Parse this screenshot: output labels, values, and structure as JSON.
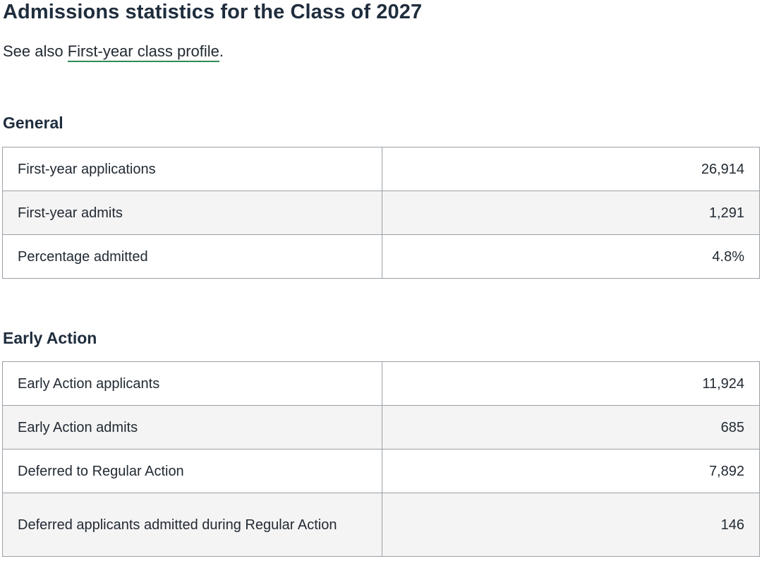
{
  "page": {
    "title": "Admissions statistics for the Class of 2027",
    "see_also_prefix": "See also ",
    "see_also_link": "First-year class profile",
    "see_also_suffix": "."
  },
  "general": {
    "heading": "General",
    "rows": [
      {
        "label": "First-year applications",
        "value": "26,914"
      },
      {
        "label": "First-year admits",
        "value": "1,291"
      },
      {
        "label": "Percentage admitted",
        "value": "4.8%"
      }
    ]
  },
  "early_action": {
    "heading": "Early Action",
    "rows": [
      {
        "label": "Early Action applicants",
        "value": "11,924"
      },
      {
        "label": "Early Action admits",
        "value": "685"
      },
      {
        "label": "Deferred to Regular Action",
        "value": "7,892"
      },
      {
        "label": "Deferred applicants admitted during Regular Action",
        "value": "146"
      }
    ]
  },
  "colors": {
    "link_underline": "#2e8b57",
    "text": "#1f2d3d",
    "row_alt_bg": "#f4f4f4",
    "border": "#9aa0a6"
  }
}
